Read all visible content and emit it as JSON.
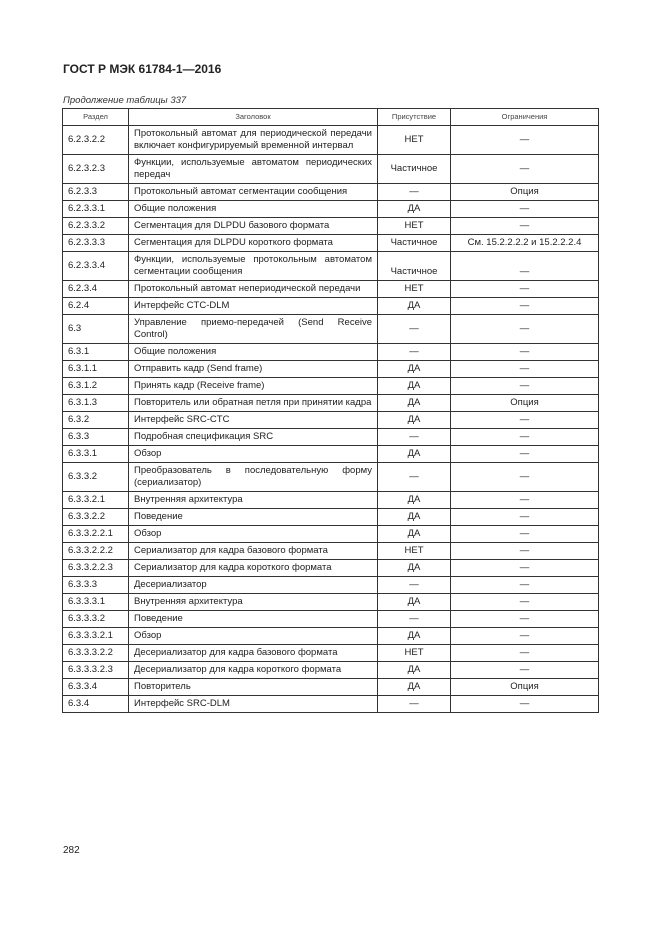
{
  "header": {
    "title": "ГОСТ Р МЭК 61784-1—2016",
    "caption": "Продолжение таблицы 337"
  },
  "table": {
    "columns": [
      "Раздел",
      "Заголовок",
      "Присутствие",
      "Ограничения"
    ],
    "rows": [
      [
        "6.2.3.2.2",
        "Протокольный автомат для периодической передачи включает конфигурируемый временной интервал",
        "НЕТ",
        "—"
      ],
      [
        "6.2.3.2.3",
        "Функции, используемые автоматом периодических передач",
        "Частичное",
        "—"
      ],
      [
        "6.2.3.3",
        "Протокольный автомат сегментации сообщения",
        "—",
        "Опция"
      ],
      [
        "6.2.3.3.1",
        "Общие положения",
        "ДА",
        "—"
      ],
      [
        "6.2.3.3.2",
        "Сегментация для DLPDU базового формата",
        "НЕТ",
        "—"
      ],
      [
        "6.2.3.3.3",
        "Сегментация для DLPDU короткого формата",
        "Частичное",
        "См. 15.2.2.2.2 и 15.2.2.2.4"
      ],
      [
        "6.2.3.3.4",
        "Функции, используемые протокольным автоматом сегментации сообщения",
        "Частичное",
        "—"
      ],
      [
        "6.2.3.4",
        "Протокольный автомат непериодической передачи",
        "НЕТ",
        "—"
      ],
      [
        "6.2.4",
        "Интерфейс CTC-DLM",
        "ДА",
        "—"
      ],
      [
        "6.3",
        "Управление приемо-передачей (Send Receive Control)",
        "—",
        "—"
      ],
      [
        "6.3.1",
        "Общие положения",
        "—",
        "—"
      ],
      [
        "6.3.1.1",
        "Отправить кадр (Send frame)",
        "ДА",
        "—"
      ],
      [
        "6.3.1.2",
        "Принять кадр (Receive frame)",
        "ДА",
        "—"
      ],
      [
        "6.3.1.3",
        "Повторитель или обратная петля при принятии кадра",
        "ДА",
        "Опция"
      ],
      [
        "6.3.2",
        "Интерфейс SRC-CTC",
        "ДА",
        "—"
      ],
      [
        "6.3.3",
        "Подробная спецификация SRC",
        "—",
        "—"
      ],
      [
        "6.3.3.1",
        "Обзор",
        "ДА",
        "—"
      ],
      [
        "6.3.3.2",
        "Преобразователь в последовательную форму (сериализатор)",
        "—",
        "—"
      ],
      [
        "6.3.3.2.1",
        "Внутренняя архитектура",
        "ДА",
        "—"
      ],
      [
        "6.3.3.2.2",
        "Поведение",
        "ДА",
        "—"
      ],
      [
        "6.3.3.2.2.1",
        "Обзор",
        "ДА",
        "—"
      ],
      [
        "6.3.3.2.2.2",
        "Сериализатор для кадра базового формата",
        "НЕТ",
        "—"
      ],
      [
        "6.3.3.2.2.3",
        "Сериализатор для кадра короткого формата",
        "ДА",
        "—"
      ],
      [
        "6.3.3.3",
        "Десериализатор",
        "—",
        "—"
      ],
      [
        "6.3.3.3.1",
        "Внутренняя архитектура",
        "ДА",
        "—"
      ],
      [
        "6.3.3.3.2",
        "Поведение",
        "—",
        "—"
      ],
      [
        "6.3.3.3.2.1",
        "Обзор",
        "ДА",
        "—"
      ],
      [
        "6.3.3.3.2.2",
        "Десериализатор для кадра базового формата",
        "НЕТ",
        "—"
      ],
      [
        "6.3.3.3.2.3",
        "Десериализатор для кадра короткого формата",
        "ДА",
        "—"
      ],
      [
        "6.3.3.4",
        "Повторитель",
        "ДА",
        "Опция"
      ],
      [
        "6.3.4",
        "Интерфейс SRC-DLM",
        "—",
        "—"
      ]
    ]
  },
  "footer": {
    "page_number": "282"
  }
}
